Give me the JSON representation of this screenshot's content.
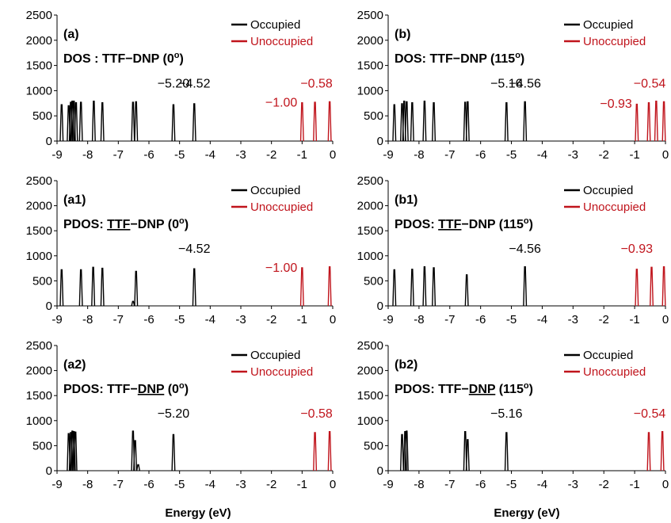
{
  "xlabel": "Energy (eV)",
  "colors": {
    "occupied": "#000000",
    "unoccupied": "#c0141c"
  },
  "chart_data": [
    {
      "type": "line",
      "panel": "(a)",
      "title_parts": [
        "DOS : TTF−DNP (0",
        "o",
        ")"
      ],
      "title_underline": "",
      "xlim": [
        -9,
        0
      ],
      "ylim": [
        0,
        2500
      ],
      "xticks": [
        -9,
        -8,
        -7,
        -6,
        -5,
        -4,
        -3,
        -2,
        -1,
        0
      ],
      "yticks": [
        0,
        500,
        1000,
        1500,
        2000,
        2500
      ],
      "legend": [
        "Occupied",
        "Unoccupied"
      ],
      "series": [
        {
          "name": "Occupied",
          "peaks": [
            [
              -8.85,
              720
            ],
            [
              -8.62,
              700
            ],
            [
              -8.55,
              770
            ],
            [
              -8.5,
              790
            ],
            [
              -8.45,
              790
            ],
            [
              -8.38,
              760
            ],
            [
              -8.22,
              770
            ],
            [
              -7.8,
              790
            ],
            [
              -7.52,
              760
            ],
            [
              -6.52,
              770
            ],
            [
              -6.42,
              780
            ],
            [
              -5.2,
              720
            ],
            [
              -4.52,
              740
            ]
          ]
        },
        {
          "name": "Unoccupied",
          "peaks": [
            [
              -1.0,
              760
            ],
            [
              -0.58,
              770
            ],
            [
              -0.1,
              780
            ]
          ]
        }
      ],
      "annotations": [
        {
          "text": "−5.20",
          "x": -5.2,
          "y": 1000,
          "color": "occupied"
        },
        {
          "text": "−4.52",
          "x": -4.52,
          "y": 1000,
          "color": "occupied"
        },
        {
          "text": "−0.58",
          "x": -0.58,
          "y": 1000,
          "color": "unoccupied"
        },
        {
          "text": "−1.00",
          "x": -1.0,
          "y": 620,
          "color": "unoccupied"
        }
      ]
    },
    {
      "type": "line",
      "panel": "(b)",
      "title_parts": [
        "DOS: TTF−DNP (115",
        "o",
        ")"
      ],
      "title_underline": "",
      "xlim": [
        -9,
        0
      ],
      "ylim": [
        0,
        2500
      ],
      "xticks": [
        -9,
        -8,
        -7,
        -6,
        -5,
        -4,
        -3,
        -2,
        -1,
        0
      ],
      "yticks": [
        0,
        500,
        1000,
        1500,
        2000,
        2500
      ],
      "legend": [
        "Occupied",
        "Unoccupied"
      ],
      "series": [
        {
          "name": "Occupied",
          "peaks": [
            [
              -8.8,
              720
            ],
            [
              -8.55,
              740
            ],
            [
              -8.48,
              790
            ],
            [
              -8.4,
              780
            ],
            [
              -8.22,
              760
            ],
            [
              -7.82,
              790
            ],
            [
              -7.52,
              760
            ],
            [
              -6.5,
              770
            ],
            [
              -6.42,
              780
            ],
            [
              -5.16,
              760
            ],
            [
              -4.56,
              780
            ]
          ]
        },
        {
          "name": "Unoccupied",
          "peaks": [
            [
              -0.93,
              730
            ],
            [
              -0.54,
              760
            ],
            [
              -0.3,
              790
            ],
            [
              -0.05,
              780
            ]
          ]
        }
      ],
      "annotations": [
        {
          "text": "−5.16",
          "x": -5.16,
          "y": 1000,
          "color": "occupied"
        },
        {
          "text": "−4.56",
          "x": -4.56,
          "y": 1000,
          "color": "occupied"
        },
        {
          "text": "−0.54",
          "x": -0.54,
          "y": 1000,
          "color": "unoccupied"
        },
        {
          "text": "−0.93",
          "x": -0.93,
          "y": 600,
          "color": "unoccupied"
        }
      ]
    },
    {
      "type": "line",
      "panel": "(a1)",
      "title_parts": [
        "PDOS: ",
        "TTF",
        "−DNP (0",
        "o",
        ")"
      ],
      "title_underline": "TTF",
      "xlim": [
        -9,
        0
      ],
      "ylim": [
        0,
        2500
      ],
      "xticks": [
        -9,
        -8,
        -7,
        -6,
        -5,
        -4,
        -3,
        -2,
        -1,
        0
      ],
      "yticks": [
        0,
        500,
        1000,
        1500,
        2000,
        2500
      ],
      "legend": [
        "Occupied",
        "Unoccupied"
      ],
      "series": [
        {
          "name": "Occupied",
          "peaks": [
            [
              -8.85,
              720
            ],
            [
              -8.22,
              720
            ],
            [
              -7.82,
              770
            ],
            [
              -7.52,
              750
            ],
            [
              -6.52,
              90
            ],
            [
              -6.42,
              690
            ],
            [
              -4.52,
              740
            ]
          ]
        },
        {
          "name": "Unoccupied",
          "peaks": [
            [
              -1.0,
              760
            ],
            [
              -0.1,
              780
            ]
          ]
        }
      ],
      "annotations": [
        {
          "text": "−4.52",
          "x": -4.52,
          "y": 1000,
          "color": "occupied"
        },
        {
          "text": "−1.00",
          "x": -1.0,
          "y": 620,
          "color": "unoccupied"
        }
      ]
    },
    {
      "type": "line",
      "panel": "(b1)",
      "title_parts": [
        "PDOS: ",
        "TTF",
        "−DNP (115",
        "o",
        ")"
      ],
      "title_underline": "TTF",
      "xlim": [
        -9,
        0
      ],
      "ylim": [
        0,
        2500
      ],
      "xticks": [
        -9,
        -8,
        -7,
        -6,
        -5,
        -4,
        -3,
        -2,
        -1,
        0
      ],
      "yticks": [
        0,
        500,
        1000,
        1500,
        2000,
        2500
      ],
      "legend": [
        "Occupied",
        "Unoccupied"
      ],
      "series": [
        {
          "name": "Occupied",
          "peaks": [
            [
              -8.8,
              720
            ],
            [
              -8.22,
              730
            ],
            [
              -7.82,
              780
            ],
            [
              -7.52,
              760
            ],
            [
              -6.45,
              620
            ],
            [
              -4.56,
              780
            ]
          ]
        },
        {
          "name": "Unoccupied",
          "peaks": [
            [
              -0.93,
              730
            ],
            [
              -0.45,
              770
            ],
            [
              -0.05,
              780
            ]
          ]
        }
      ],
      "annotations": [
        {
          "text": "−4.56",
          "x": -4.56,
          "y": 1000,
          "color": "occupied"
        },
        {
          "text": "−0.93",
          "x": -0.93,
          "y": 1000,
          "color": "unoccupied"
        }
      ]
    },
    {
      "type": "line",
      "panel": "(a2)",
      "title_parts": [
        "PDOS: TTF−",
        "DNP",
        " (0",
        "o",
        ")"
      ],
      "title_underline": "DNP",
      "xlim": [
        -9,
        0
      ],
      "ylim": [
        0,
        2500
      ],
      "xticks": [
        -9,
        -8,
        -7,
        -6,
        -5,
        -4,
        -3,
        -2,
        -1,
        0
      ],
      "yticks": [
        0,
        500,
        1000,
        1500,
        2000,
        2500
      ],
      "legend": [
        "Occupied",
        "Unoccupied"
      ],
      "series": [
        {
          "name": "Occupied",
          "peaks": [
            [
              -8.62,
              740
            ],
            [
              -8.55,
              760
            ],
            [
              -8.5,
              790
            ],
            [
              -8.45,
              780
            ],
            [
              -8.4,
              770
            ],
            [
              -6.52,
              790
            ],
            [
              -6.45,
              600
            ],
            [
              -6.35,
              120
            ],
            [
              -5.2,
              720
            ]
          ]
        },
        {
          "name": "Unoccupied",
          "peaks": [
            [
              -0.58,
              760
            ],
            [
              -0.1,
              780
            ]
          ]
        }
      ],
      "annotations": [
        {
          "text": "−5.20",
          "x": -5.2,
          "y": 1000,
          "color": "occupied"
        },
        {
          "text": "−0.58",
          "x": -0.58,
          "y": 1000,
          "color": "unoccupied"
        }
      ]
    },
    {
      "type": "line",
      "panel": "(b2)",
      "title_parts": [
        "PDOS: TTF−",
        "DNP",
        " (115",
        "o",
        ")"
      ],
      "title_underline": "DNP",
      "xlim": [
        -9,
        0
      ],
      "ylim": [
        0,
        2500
      ],
      "xticks": [
        -9,
        -8,
        -7,
        -6,
        -5,
        -4,
        -3,
        -2,
        -1,
        0
      ],
      "yticks": [
        0,
        500,
        1000,
        1500,
        2000,
        2500
      ],
      "legend": [
        "Occupied",
        "Unoccupied"
      ],
      "series": [
        {
          "name": "Occupied",
          "peaks": [
            [
              -8.55,
              720
            ],
            [
              -8.45,
              780
            ],
            [
              -8.4,
              790
            ],
            [
              -6.5,
              780
            ],
            [
              -6.42,
              620
            ],
            [
              -5.16,
              760
            ]
          ]
        },
        {
          "name": "Unoccupied",
          "peaks": [
            [
              -0.54,
              760
            ],
            [
              -0.1,
              780
            ]
          ]
        }
      ],
      "annotations": [
        {
          "text": "−5.16",
          "x": -5.16,
          "y": 1000,
          "color": "occupied"
        },
        {
          "text": "−0.54",
          "x": -0.54,
          "y": 1000,
          "color": "unoccupied"
        }
      ]
    }
  ]
}
